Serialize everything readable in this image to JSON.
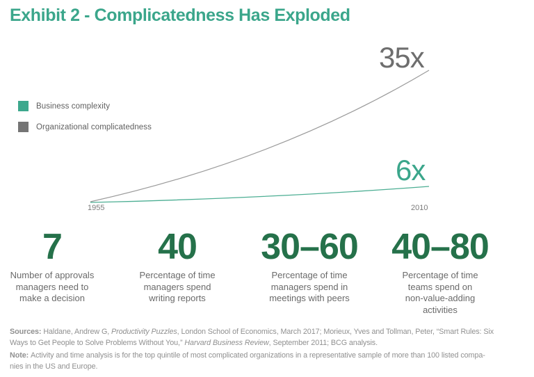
{
  "title": "Exhibit 2 - Complicatedness Has Exploded",
  "legend": {
    "items": [
      {
        "label": "Business complexity",
        "color": "#3da88d"
      },
      {
        "label": "Organizational complicatedness",
        "color": "#757575"
      }
    ]
  },
  "chart_data": {
    "type": "line",
    "title": "Exhibit 2 - Complicatedness Has Exploded",
    "x": [
      1955,
      2010
    ],
    "x_tick_labels": [
      "1955",
      "2010"
    ],
    "grid": false,
    "y_axis_visible": false,
    "legend_position": "left",
    "series": [
      {
        "name": "Organizational complicatedness",
        "color": "#9a9a9a",
        "values": [
          1,
          35
        ],
        "end_label": "35x",
        "shape": "upward curve from common origin, steepening toward 2010"
      },
      {
        "name": "Business complexity",
        "color": "#3da88d",
        "values": [
          1,
          6
        ],
        "end_label": "6x",
        "shape": "nearly flat gentle rise from common origin"
      }
    ]
  },
  "labels": {
    "gray_end": "35x",
    "teal_end": "6x",
    "tick_start": "1955",
    "tick_end": "2010"
  },
  "stats": [
    {
      "value": "7",
      "description": [
        "Number of approvals",
        "managers need to",
        "make a decision"
      ]
    },
    {
      "value": "40",
      "description": [
        "Percentage of time",
        "managers spend",
        "writing reports"
      ]
    },
    {
      "value": "30–60",
      "description": [
        "Percentage of time",
        "managers spend in",
        "meetings with peers"
      ]
    },
    {
      "value": "40–80",
      "description": [
        "Percentage of time",
        "teams spend on",
        "non-value-adding",
        "activities"
      ]
    }
  ],
  "footer": {
    "sources_lines": [
      [
        {
          "t": "Sources: ",
          "b": true
        },
        {
          "t": "Haldane, Andrew G, "
        },
        {
          "t": "Productivity Puzzles",
          "i": true
        },
        {
          "t": ", London School of Economics, March 2017; Morieux, Yves and Tollman, Peter, “Smart Rules: Six"
        }
      ],
      [
        {
          "t": "Ways to Get People to Solve Problems Without You,” "
        },
        {
          "t": "Harvard Business Review",
          "i": true
        },
        {
          "t": ", September 2011; BCG analysis."
        }
      ]
    ],
    "note_lines": [
      [
        {
          "t": "Note: ",
          "b": true
        },
        {
          "t": "Activity and time analysis is for the top quintile of most complicated organizations in a representative sample of more than 100 listed compa-"
        }
      ],
      [
        {
          "t": "nies in the US and Europe."
        }
      ]
    ]
  },
  "colors": {
    "accent_teal": "#3ba68b",
    "dark_green": "#25714a",
    "line_gray": "#9a9a9a",
    "legend_gray": "#757575",
    "text_gray": "#6a6a6a",
    "footer_gray": "#909090"
  }
}
